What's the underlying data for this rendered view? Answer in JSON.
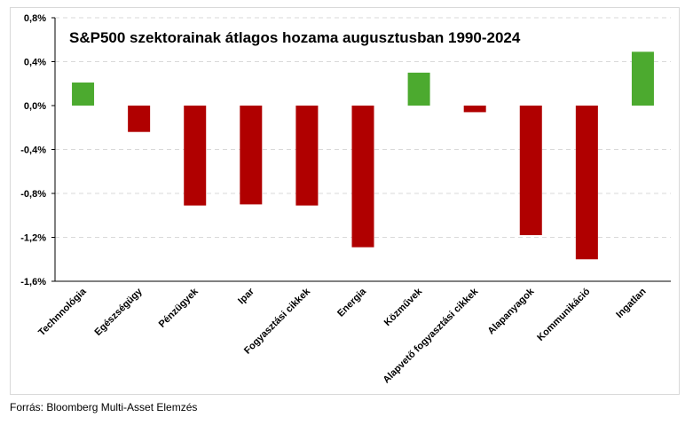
{
  "source": "Forrás: Bloomberg Multi-Asset Elemzés",
  "colors": {
    "positive": "#4caa2f",
    "negative": "#b00000",
    "gridline": "#d9d9d9",
    "axis": "#000000"
  },
  "chart_data": {
    "type": "bar",
    "title": "S&P500 szektorainak átlagos hozama augusztusban 1990-2024",
    "categories": [
      "Technnológia",
      "Egészségügy",
      "Pénzügyek",
      "Ipar",
      "Fogyasztási cikkek",
      "Energia",
      "Közművek",
      "Alapvető fogyasztási cikkek",
      "Alapanyagok",
      "Kommunikáció",
      "Ingatlan"
    ],
    "values": [
      0.21,
      -0.24,
      -0.91,
      -0.9,
      -0.91,
      -1.29,
      0.3,
      -0.06,
      -1.18,
      -1.4,
      0.49
    ],
    "ylim": [
      -1.6,
      0.8
    ],
    "yticks": [
      0.8,
      0.4,
      0.0,
      -0.4,
      -0.8,
      -1.2,
      -1.6
    ],
    "ytick_labels": [
      "0,8%",
      "0,4%",
      "0,0%",
      "-0,4%",
      "-0,8%",
      "-1,2%",
      "-1,6%"
    ],
    "grid": true,
    "xlabel": "",
    "ylabel": ""
  }
}
